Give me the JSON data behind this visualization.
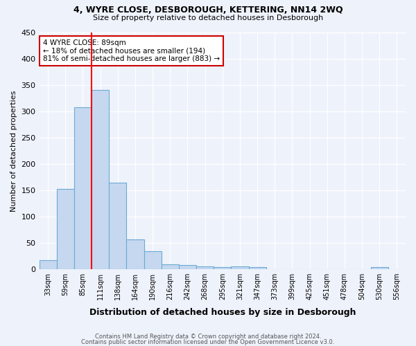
{
  "title1": "4, WYRE CLOSE, DESBOROUGH, KETTERING, NN14 2WQ",
  "title2": "Size of property relative to detached houses in Desborough",
  "xlabel": "Distribution of detached houses by size in Desborough",
  "ylabel": "Number of detached properties",
  "categories": [
    "33sqm",
    "59sqm",
    "85sqm",
    "111sqm",
    "138sqm",
    "164sqm",
    "190sqm",
    "216sqm",
    "242sqm",
    "268sqm",
    "295sqm",
    "321sqm",
    "347sqm",
    "373sqm",
    "399sqm",
    "425sqm",
    "451sqm",
    "478sqm",
    "504sqm",
    "530sqm",
    "556sqm"
  ],
  "values": [
    17,
    152,
    308,
    340,
    165,
    57,
    35,
    10,
    8,
    6,
    4,
    5,
    4,
    0,
    0,
    0,
    0,
    0,
    0,
    4,
    0
  ],
  "bar_color": "#c5d8ef",
  "bar_edge_color": "#6aaad4",
  "red_line_x": 2.5,
  "annotation_line1": "4 WYRE CLOSE: 89sqm",
  "annotation_line2": "← 18% of detached houses are smaller (194)",
  "annotation_line3": "81% of semi-detached houses are larger (883) →",
  "annotation_box_color": "#ffffff",
  "annotation_box_edge": "#cc0000",
  "footer1": "Contains HM Land Registry data © Crown copyright and database right 2024.",
  "footer2": "Contains public sector information licensed under the Open Government Licence v3.0.",
  "ylim": [
    0,
    450
  ],
  "yticks": [
    0,
    50,
    100,
    150,
    200,
    250,
    300,
    350,
    400,
    450
  ],
  "background_color": "#eef2fb"
}
